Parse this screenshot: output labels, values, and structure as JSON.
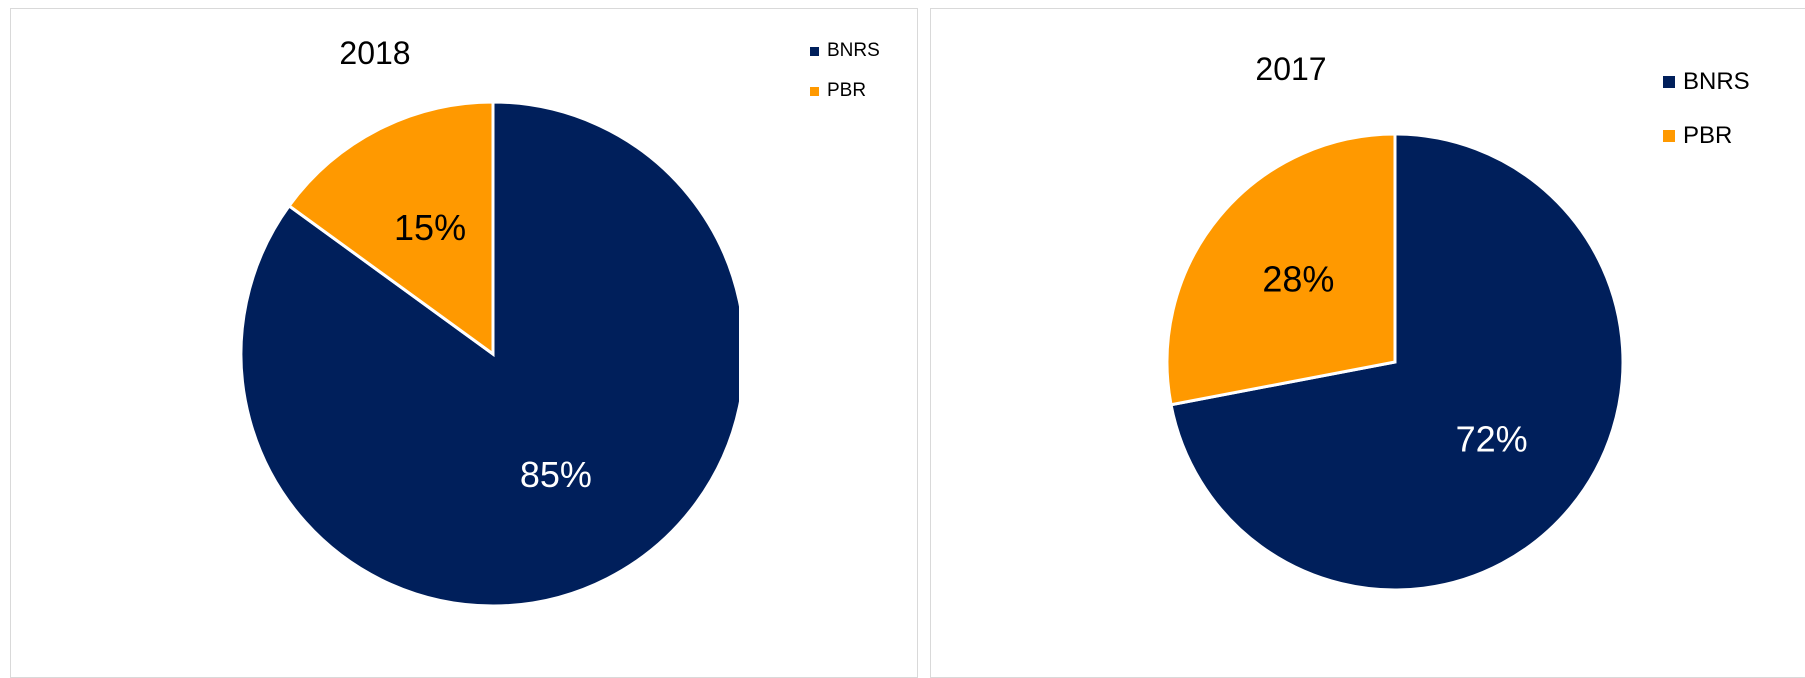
{
  "chart_data": [
    {
      "type": "pie",
      "title": "2018",
      "legend_position": "top-right",
      "start_angle_deg": 0,
      "direction": "clockwise",
      "slices": [
        {
          "label": "BNRS",
          "value": 85,
          "display": "85%",
          "color": "#001f5b",
          "label_color": "#ffffff"
        },
        {
          "label": "PBR",
          "value": 15,
          "display": "15%",
          "color": "#ff9900",
          "label_color": "#000000"
        }
      ]
    },
    {
      "type": "pie",
      "title": "2017",
      "legend_position": "top-right",
      "start_angle_deg": 0,
      "direction": "clockwise",
      "slices": [
        {
          "label": "BNRS",
          "value": 72,
          "display": "72%",
          "color": "#001f5b",
          "label_color": "#ffffff"
        },
        {
          "label": "PBR",
          "value": 28,
          "display": "28%",
          "color": "#ff9900",
          "label_color": "#000000"
        }
      ]
    }
  ]
}
